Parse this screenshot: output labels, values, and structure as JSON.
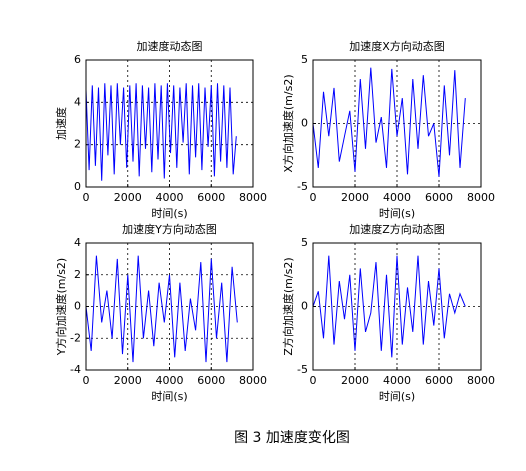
{
  "chart_data": [
    {
      "type": "line",
      "title": "加速度动态图",
      "xlabel": "时间(s)",
      "ylabel": "加速度",
      "color": "#0000ff",
      "grid": true,
      "xlim": [
        0,
        8000
      ],
      "xticks": [
        0,
        2000,
        4000,
        6000,
        8000
      ],
      "ylim": [
        0,
        6
      ],
      "yticks": [
        0,
        2,
        4,
        6
      ],
      "x": [
        0,
        150,
        300,
        450,
        600,
        750,
        900,
        1050,
        1200,
        1350,
        1500,
        1650,
        1800,
        1950,
        2100,
        2250,
        2400,
        2550,
        2700,
        2850,
        3000,
        3150,
        3300,
        3450,
        3600,
        3750,
        3900,
        4050,
        4200,
        4350,
        4500,
        4650,
        4800,
        4950,
        5100,
        5250,
        5400,
        5550,
        5700,
        5850,
        6000,
        6150,
        6300,
        6450,
        6600,
        6750,
        6900,
        7050,
        7200
      ],
      "values": [
        4.6,
        0.8,
        4.8,
        1.0,
        4.7,
        0.3,
        4.9,
        1.5,
        4.8,
        0.6,
        4.9,
        2.0,
        4.7,
        0.9,
        4.8,
        1.2,
        4.9,
        0.5,
        4.8,
        1.8,
        4.7,
        0.7,
        4.9,
        1.3,
        4.8,
        0.4,
        4.9,
        1.6,
        4.8,
        0.9,
        4.7,
        2.1,
        4.9,
        0.6,
        4.8,
        1.4,
        4.9,
        0.8,
        4.7,
        1.9,
        4.8,
        0.5,
        4.9,
        1.2,
        4.8,
        0.9,
        4.7,
        0.6,
        2.4
      ]
    },
    {
      "type": "line",
      "title": "加速度X方向动态图",
      "xlabel": "时间(s)",
      "ylabel": "X方向加速度(m/s2)",
      "color": "#0000ff",
      "grid": true,
      "xlim": [
        0,
        8000
      ],
      "xticks": [
        0,
        2000,
        4000,
        6000,
        8000
      ],
      "ylim": [
        -5,
        5
      ],
      "yticks": [
        -5,
        0,
        5
      ],
      "x": [
        0,
        250,
        500,
        750,
        1000,
        1250,
        1500,
        1750,
        2000,
        2250,
        2500,
        2750,
        3000,
        3250,
        3500,
        3750,
        4000,
        4250,
        4500,
        4750,
        5000,
        5250,
        5500,
        5750,
        6000,
        6250,
        6500,
        6750,
        7000,
        7250
      ],
      "values": [
        0,
        -3.5,
        2.5,
        -1,
        2.8,
        -3,
        -1,
        1,
        -3.8,
        3.5,
        -2,
        4.4,
        -1.5,
        0.5,
        -3.5,
        4.3,
        -1,
        2,
        -4,
        3.5,
        -2,
        3.8,
        -1,
        0,
        -4.2,
        3,
        -2.5,
        4.2,
        -3.5,
        2
      ]
    },
    {
      "type": "line",
      "title": "加速度Y方向动态图",
      "xlabel": "时间(s)",
      "ylabel": "Y方向加速度(m/s2)",
      "color": "#0000ff",
      "grid": true,
      "xlim": [
        0,
        8000
      ],
      "xticks": [
        0,
        2000,
        4000,
        6000,
        8000
      ],
      "ylim": [
        -4,
        4
      ],
      "yticks": [
        -4,
        -2,
        0,
        2,
        4
      ],
      "x": [
        0,
        250,
        500,
        750,
        1000,
        1250,
        1500,
        1750,
        2000,
        2250,
        2500,
        2750,
        3000,
        3250,
        3500,
        3750,
        4000,
        4250,
        4500,
        4750,
        5000,
        5250,
        5500,
        5750,
        6000,
        6250,
        6500,
        6750,
        7000,
        7250
      ],
      "values": [
        0,
        -2.8,
        3.2,
        -1,
        1,
        -2,
        3,
        -3,
        2,
        -3.5,
        3.2,
        -2,
        1,
        -2.5,
        1.5,
        -1,
        2,
        -3.2,
        1.5,
        -2.8,
        0.5,
        -1.5,
        2.8,
        -3.5,
        3,
        -2,
        1.5,
        -3.5,
        2.5,
        -1
      ]
    },
    {
      "type": "line",
      "title": "加速度Z方向动态图",
      "xlabel": "时间(s)",
      "ylabel": "Z方向加速度(m/s2)",
      "color": "#0000ff",
      "grid": true,
      "xlim": [
        0,
        8000
      ],
      "xticks": [
        0,
        2000,
        4000,
        6000,
        8000
      ],
      "ylim": [
        -5,
        5
      ],
      "yticks": [
        -5,
        0,
        5
      ],
      "x": [
        0,
        250,
        500,
        750,
        1000,
        1250,
        1500,
        1750,
        2000,
        2250,
        2500,
        2750,
        3000,
        3250,
        3500,
        3750,
        4000,
        4250,
        4500,
        4750,
        5000,
        5250,
        5500,
        5750,
        6000,
        6250,
        6500,
        6750,
        7000,
        7250
      ],
      "values": [
        0,
        1.2,
        -2.5,
        4,
        -3,
        2,
        -1,
        2.5,
        -3.5,
        3,
        -2,
        -0.5,
        3.5,
        -3.5,
        2.5,
        -4,
        4,
        -3,
        1.5,
        -2,
        4,
        -3,
        2,
        -1.5,
        3,
        -2.5,
        1,
        -0.5,
        1,
        0
      ]
    }
  ],
  "caption": "图 3  加速度变化图"
}
